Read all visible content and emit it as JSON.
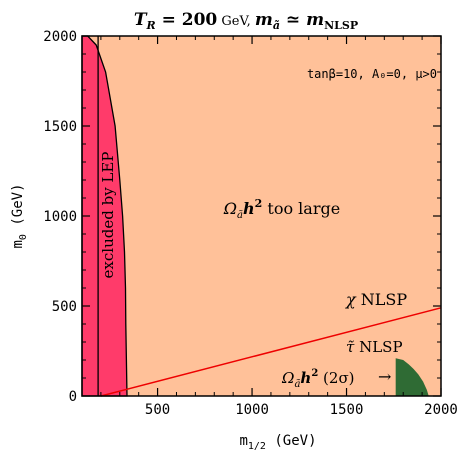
{
  "chart_data": {
    "type": "area",
    "title": "T_R = 200 GeV,  m_ã ≃ m_NLSP",
    "title_parts": {
      "t": "T",
      "t_sub": "R",
      "eq1": " = 200",
      "gev": " GeV, ",
      "m": "m",
      "m_sub": "ã",
      "sim": " ≃ ",
      "m2": "m",
      "m2_sub": "NLSP"
    },
    "params_label": "tanβ=10, A₀=0, μ>0",
    "xlabel": "m1/2 (GeV)",
    "xlabel_parts": {
      "main": "m",
      "sub": "1/2",
      "unit": " (GeV)"
    },
    "ylabel": "m0 (GeV)",
    "ylabel_parts": {
      "main": "m",
      "sub": "0",
      "unit": " (GeV)"
    },
    "xlim": [
      100,
      2000
    ],
    "ylim": [
      0,
      2000
    ],
    "x_ticks": [
      500,
      1000,
      1500,
      2000
    ],
    "y_ticks": [
      0,
      500,
      1000,
      1500,
      2000
    ],
    "regions": [
      {
        "label": "Ωãh² too large",
        "label_parts": {
          "omega": "Ω",
          "omega_sub": "ã",
          "h": "h",
          "h_sup": "2",
          "rest": " too large"
        },
        "color": "#ffc199"
      },
      {
        "label": "excluded by LEP",
        "color": "#ff3b6a",
        "boundary": [
          [
            130,
            2000
          ],
          [
            175,
            1950
          ],
          [
            225,
            1800
          ],
          [
            275,
            1500
          ],
          [
            300,
            1200
          ],
          [
            315,
            1000
          ],
          [
            325,
            800
          ],
          [
            330,
            600
          ],
          [
            332,
            400
          ],
          [
            335,
            200
          ],
          [
            338,
            0
          ]
        ]
      },
      {
        "label": "Ωãh² (2σ)",
        "label_parts": {
          "omega": "Ω",
          "omega_sub": "ã",
          "h": "h",
          "h_sup": "2",
          "rest": " (2σ)"
        },
        "color": "#2f6b34",
        "boundary": [
          [
            1760,
            210
          ],
          [
            1800,
            200
          ],
          [
            1830,
            175
          ],
          [
            1855,
            150
          ],
          [
            1880,
            120
          ],
          [
            1905,
            80
          ],
          [
            1925,
            35
          ],
          [
            1935,
            0
          ],
          [
            1760,
            0
          ]
        ]
      }
    ],
    "lines": [
      {
        "label": "χ NLSP / τ̃ NLSP boundary",
        "color": "#ee0000",
        "points": [
          [
            200,
            0
          ],
          [
            2000,
            490
          ]
        ]
      },
      {
        "label": "LEP inner edge",
        "color": "#000000",
        "points": [
          [
            185,
            2000
          ],
          [
            185,
            0
          ]
        ]
      }
    ],
    "annotations": [
      {
        "text": "χ NLSP",
        "symbol": "χ",
        "rest": " NLSP"
      },
      {
        "text": "τ̃ NLSP",
        "symbol": "τ̃",
        "rest": " NLSP"
      },
      {
        "text": "→"
      }
    ]
  }
}
